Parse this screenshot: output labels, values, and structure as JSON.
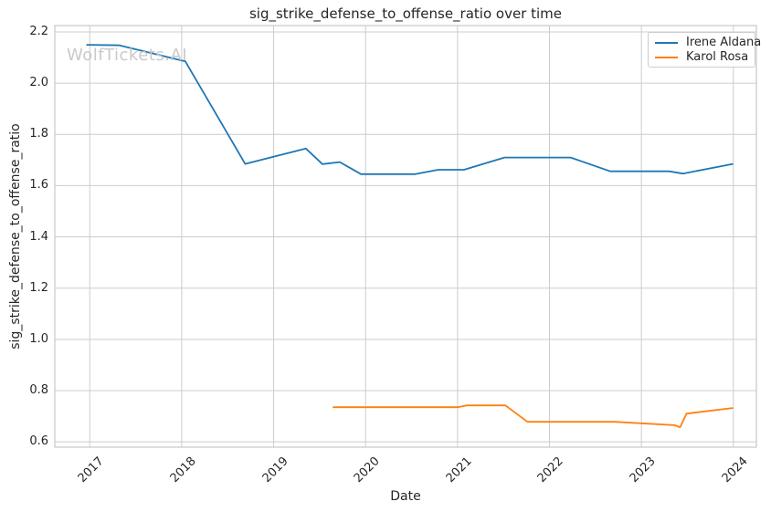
{
  "chart_data": {
    "type": "line",
    "title": "sig_strike_defense_to_offense_ratio over time",
    "xlabel": "Date",
    "ylabel": "sig_strike_defense_to_offense_ratio",
    "watermark": "WolfTickets.AI",
    "grid": true,
    "legend_position": "upper right",
    "xlim": [
      2016.62,
      2024.25
    ],
    "ylim": [
      0.579,
      2.225
    ],
    "x_tick_values": [
      2017,
      2018,
      2019,
      2020,
      2021,
      2022,
      2023,
      2024
    ],
    "x_tick_labels": [
      "2017",
      "2018",
      "2019",
      "2020",
      "2021",
      "2022",
      "2023",
      "2024"
    ],
    "y_tick_values": [
      0.6,
      0.8,
      1.0,
      1.2,
      1.4,
      1.6,
      1.8,
      2.0,
      2.2
    ],
    "y_tick_labels": [
      "0.6",
      "0.8",
      "1.0",
      "1.2",
      "1.4",
      "1.6",
      "1.8",
      "2.0",
      "2.2"
    ],
    "colors": {
      "grid": "#cccccc",
      "text": "#262626",
      "watermark": "#c9c9c9"
    },
    "series": [
      {
        "name": "Irene Aldana",
        "color": "#1f77b4",
        "points": [
          [
            2016.97,
            2.15
          ],
          [
            2017.32,
            2.148
          ],
          [
            2018.04,
            2.085
          ],
          [
            2018.69,
            1.685
          ],
          [
            2019.35,
            1.745
          ],
          [
            2019.53,
            1.684
          ],
          [
            2019.72,
            1.692
          ],
          [
            2019.95,
            1.645
          ],
          [
            2020.54,
            1.645
          ],
          [
            2020.79,
            1.662
          ],
          [
            2021.07,
            1.662
          ],
          [
            2021.51,
            1.71
          ],
          [
            2022.23,
            1.71
          ],
          [
            2022.66,
            1.656
          ],
          [
            2023.3,
            1.656
          ],
          [
            2023.45,
            1.647
          ],
          [
            2023.99,
            1.684
          ]
        ]
      },
      {
        "name": "Karol Rosa",
        "color": "#ff7f0e",
        "points": [
          [
            2019.65,
            0.735
          ],
          [
            2021.0,
            0.735
          ],
          [
            2021.1,
            0.742
          ],
          [
            2021.52,
            0.742
          ],
          [
            2021.76,
            0.678
          ],
          [
            2022.71,
            0.678
          ],
          [
            2023.36,
            0.665
          ],
          [
            2023.42,
            0.657
          ],
          [
            2023.49,
            0.71
          ],
          [
            2023.99,
            0.732
          ]
        ]
      }
    ]
  }
}
